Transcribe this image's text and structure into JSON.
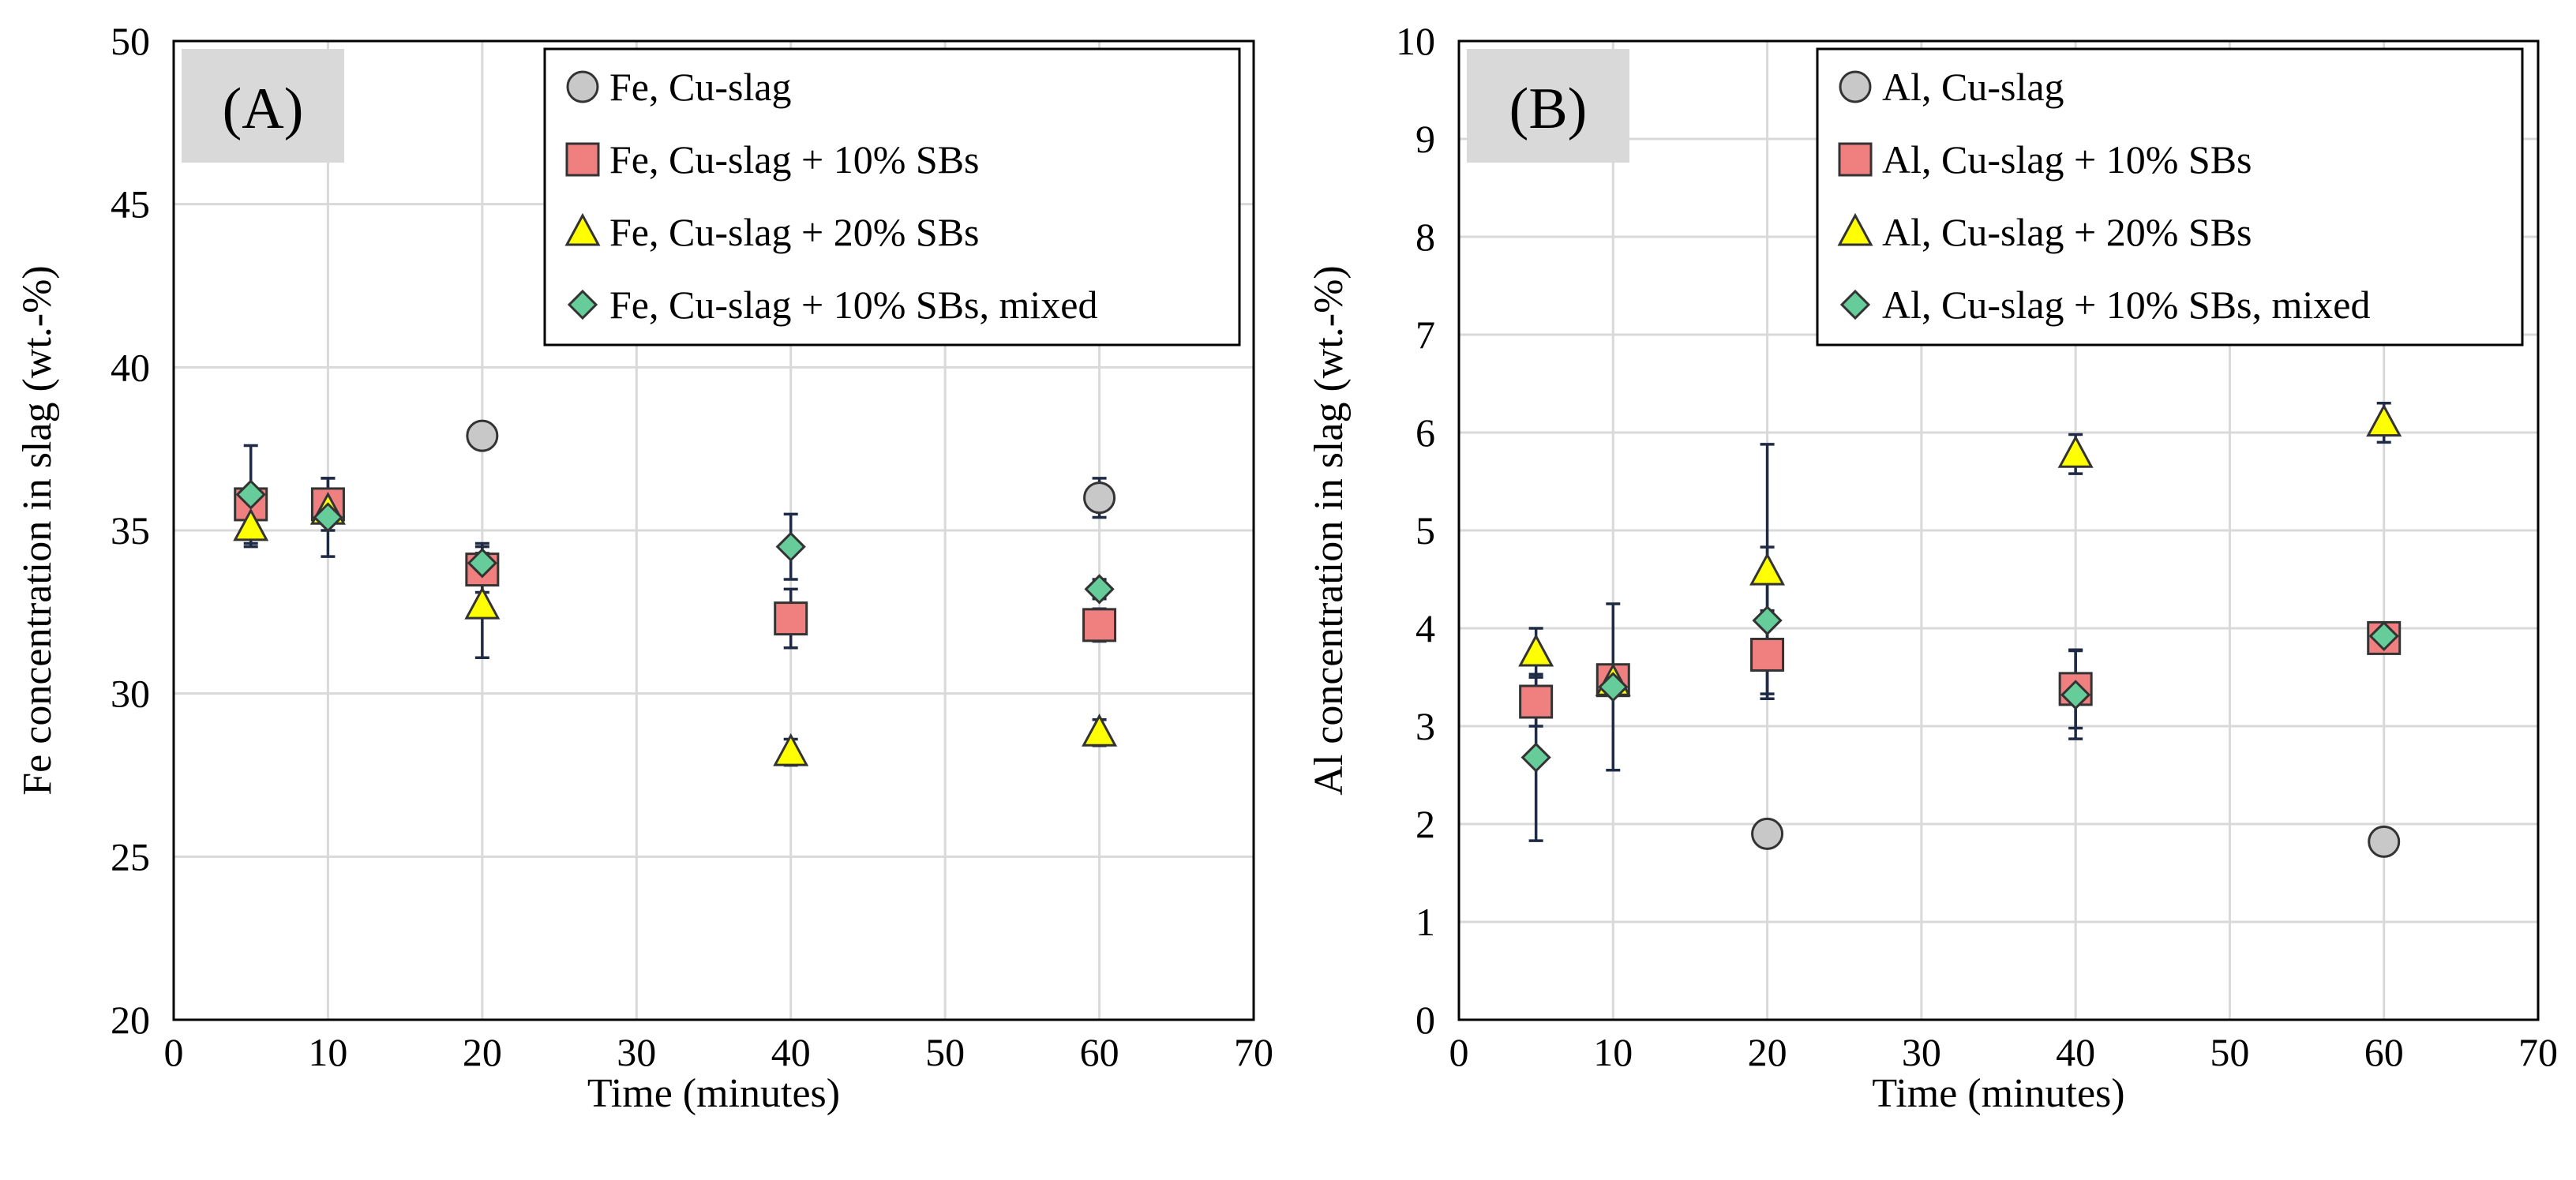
{
  "colors": {
    "series": [
      "#c8c8c8",
      "#f08080",
      "#ffff00",
      "#66cc99"
    ],
    "edge": "#333333",
    "errorbar": "#1f2a44",
    "grid": "#d9d9d9",
    "label_box": "#d9d9d9"
  },
  "chart_data": [
    {
      "type": "scatter",
      "panel_label": "(A)",
      "xlabel": "Time (minutes)",
      "ylabel": "Fe concentration in slag (wt.-%)",
      "xlim": [
        0,
        70
      ],
      "ylim": [
        20,
        50
      ],
      "xticks": [
        "0",
        "10",
        "20",
        "30",
        "40",
        "50",
        "60",
        "70"
      ],
      "yticks": [
        "20",
        "25",
        "30",
        "35",
        "40",
        "45",
        "50"
      ],
      "grid": true,
      "legend_position": "top-right",
      "series": [
        {
          "name": "Fe, Cu-slag",
          "marker": "circle",
          "points": [
            {
              "x": 20,
              "y": 37.9,
              "err": 0
            },
            {
              "x": 60,
              "y": 36.0,
              "err": 0.6
            }
          ]
        },
        {
          "name": "Fe, Cu-slag + 10% SBs",
          "marker": "square",
          "points": [
            {
              "x": 5,
              "y": 35.8,
              "err": 0.4
            },
            {
              "x": 10,
              "y": 35.8,
              "err": 0.8
            },
            {
              "x": 20,
              "y": 33.8,
              "err": 0.7
            },
            {
              "x": 40,
              "y": 32.3,
              "err": 0.9
            },
            {
              "x": 60,
              "y": 32.1,
              "err": 0.5
            }
          ]
        },
        {
          "name": "Fe, Cu-slag + 20% SBs",
          "marker": "triangle",
          "points": [
            {
              "x": 5,
              "y": 35.1,
              "err": 0.6
            },
            {
              "x": 10,
              "y": 35.6,
              "err": 0
            },
            {
              "x": 20,
              "y": 32.7,
              "err": 1.6
            },
            {
              "x": 40,
              "y": 28.2,
              "err": 0.4
            },
            {
              "x": 60,
              "y": 28.8,
              "err": 0.4
            }
          ]
        },
        {
          "name": "Fe, Cu-slag + 10% SBs, mixed",
          "marker": "diamond",
          "points": [
            {
              "x": 5,
              "y": 36.1,
              "err": 1.5
            },
            {
              "x": 10,
              "y": 35.4,
              "err": 1.2
            },
            {
              "x": 20,
              "y": 34.0,
              "err": 0.6
            },
            {
              "x": 40,
              "y": 34.5,
              "err": 1.0
            },
            {
              "x": 60,
              "y": 33.2,
              "err": 0.3
            }
          ]
        }
      ]
    },
    {
      "type": "scatter",
      "panel_label": "(B)",
      "xlabel": "Time (minutes)",
      "ylabel": "Al concentration in slag (wt.-%)",
      "xlim": [
        0,
        70
      ],
      "ylim": [
        0,
        10
      ],
      "xticks": [
        "0",
        "10",
        "20",
        "30",
        "40",
        "50",
        "60",
        "70"
      ],
      "yticks": [
        "0",
        "1",
        "2",
        "3",
        "4",
        "5",
        "6",
        "7",
        "8",
        "9",
        "10"
      ],
      "grid": true,
      "legend_position": "top-right",
      "series": [
        {
          "name": "Al, Cu-slag",
          "marker": "circle",
          "points": [
            {
              "x": 20,
              "y": 1.9,
              "err": 0.1
            },
            {
              "x": 60,
              "y": 1.82,
              "err": 0.1
            }
          ]
        },
        {
          "name": "Al, Cu-slag + 10% SBs",
          "marker": "square",
          "points": [
            {
              "x": 5,
              "y": 3.25,
              "err": 0.25
            },
            {
              "x": 10,
              "y": 3.47,
              "err": 0.1
            },
            {
              "x": 20,
              "y": 3.73,
              "err": 0.45
            },
            {
              "x": 40,
              "y": 3.38,
              "err": 0.4
            },
            {
              "x": 60,
              "y": 3.9,
              "err": 0.1
            }
          ]
        },
        {
          "name": "Al, Cu-slag + 20% SBs",
          "marker": "triangle",
          "points": [
            {
              "x": 5,
              "y": 3.75,
              "err": 0.25
            },
            {
              "x": 10,
              "y": 3.45,
              "err": 0
            },
            {
              "x": 20,
              "y": 4.58,
              "err": 1.3
            },
            {
              "x": 40,
              "y": 5.78,
              "err": 0.2
            },
            {
              "x": 60,
              "y": 6.1,
              "err": 0.2
            }
          ]
        },
        {
          "name": "Al, Cu-slag + 10% SBs, mixed",
          "marker": "diamond",
          "points": [
            {
              "x": 5,
              "y": 2.68,
              "err": 0.85
            },
            {
              "x": 10,
              "y": 3.4,
              "err": 0.85
            },
            {
              "x": 20,
              "y": 4.08,
              "err": 0.75
            },
            {
              "x": 40,
              "y": 3.32,
              "err": 0.45
            },
            {
              "x": 60,
              "y": 3.92,
              "err": 0.1
            }
          ]
        }
      ]
    }
  ]
}
